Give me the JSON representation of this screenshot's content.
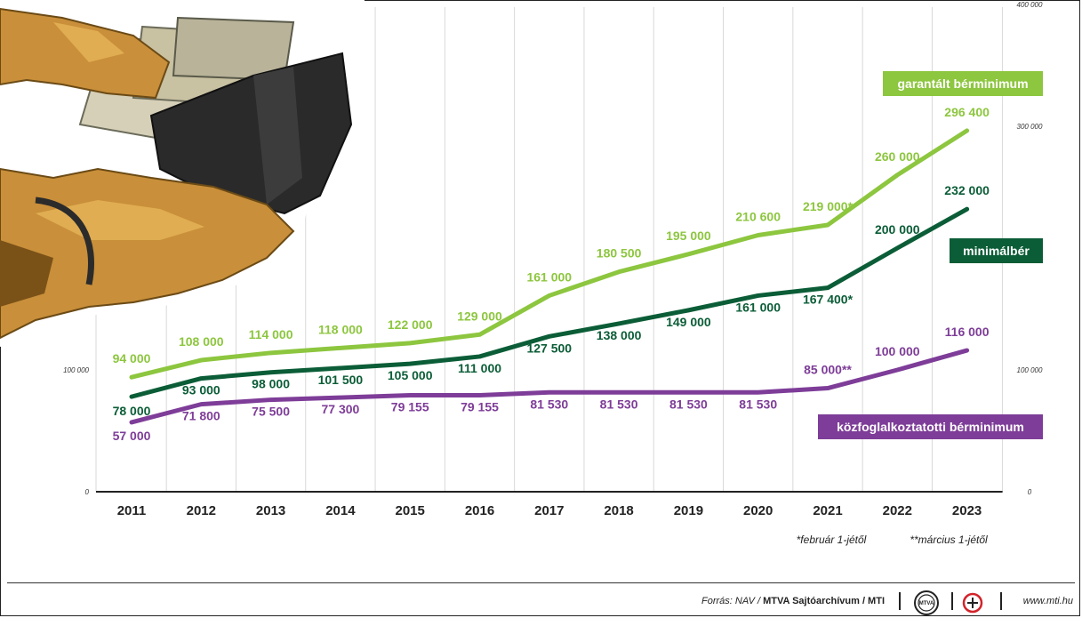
{
  "chart_data": {
    "type": "line",
    "x": [
      "2011",
      "2012",
      "2013",
      "2014",
      "2015",
      "2016",
      "2017",
      "2018",
      "2019",
      "2020",
      "2021",
      "2022",
      "2023"
    ],
    "ylim": [
      0,
      400000
    ],
    "y_ticks": [
      "0",
      "100 000",
      "300 000",
      "400 000"
    ],
    "series": [
      {
        "name": "garantált bérminimum",
        "color": "#8dc63f",
        "values": [
          94000,
          108000,
          114000,
          118000,
          122000,
          129000,
          161000,
          180500,
          195000,
          210600,
          219000,
          260000,
          296400
        ],
        "labels": [
          "94 000",
          "108 000",
          "114 000",
          "118 000",
          "122 000",
          "129 000",
          "161 000",
          "180 500",
          "195 000",
          "210 600",
          "219 000*",
          "260 000",
          "296 400"
        ]
      },
      {
        "name": "minimálbér",
        "color": "#0b5d37",
        "values": [
          78000,
          93000,
          98000,
          101500,
          105000,
          111000,
          127500,
          138000,
          149000,
          161000,
          167400,
          200000,
          232000
        ],
        "labels": [
          "78 000",
          "93 000",
          "98 000",
          "101 500",
          "105 000",
          "111 000",
          "127 500",
          "138 000",
          "149 000",
          "161 000",
          "167 400*",
          "200 000",
          "232 000"
        ]
      },
      {
        "name": "közfoglalkoztatotti bérminimum",
        "color": "#7e3d98",
        "values": [
          57000,
          71800,
          75500,
          77300,
          79155,
          79155,
          81530,
          81530,
          81530,
          81530,
          85000,
          100000,
          116000
        ],
        "labels": [
          "57 000",
          "71 800",
          "75 500",
          "77 300",
          "79 155",
          "79 155",
          "81 530",
          "81 530",
          "81 530",
          "81 530",
          "85 000**",
          "100 000",
          "116 000"
        ]
      }
    ],
    "notes": [
      "*február 1-jétől",
      "**március 1-jétől"
    ],
    "grid": "vertical",
    "legend": "inline-right"
  },
  "footer": {
    "source_prefix": "Forrás: NAV / ",
    "source_bold": "MTVA Sajtóarchívum / MTI",
    "site": "www.mti.hu",
    "logo1": "MTVA"
  },
  "colors": {
    "text_light": "#ffffff",
    "text_dark": "#222222"
  },
  "icons": {
    "photo": "hands-wallet-money-photo",
    "logo1": "mtva-logo-icon",
    "logo2": "mti-logo-icon"
  }
}
